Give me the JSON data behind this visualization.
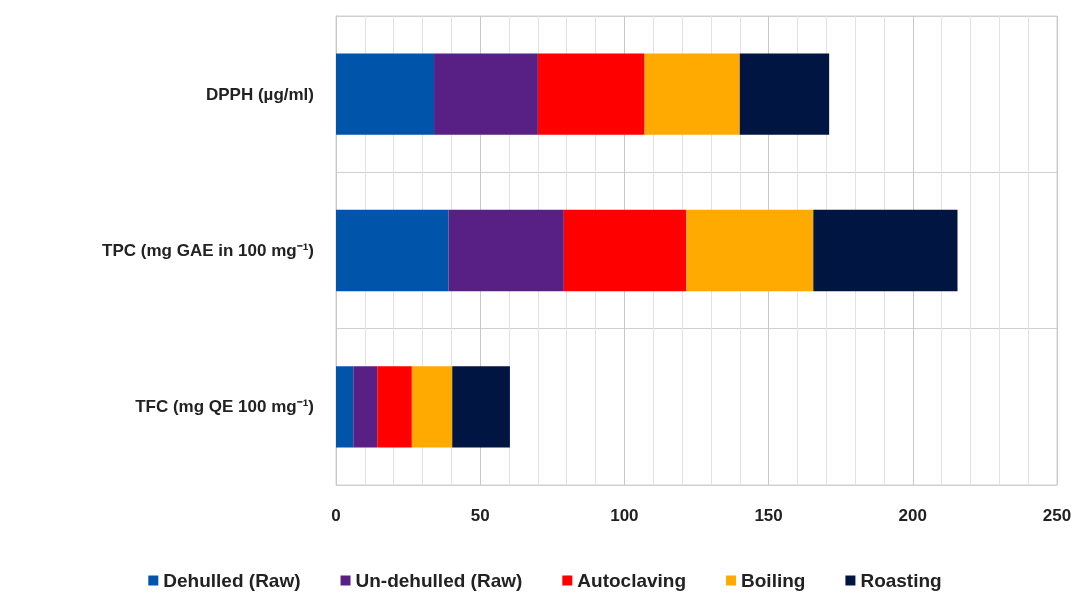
{
  "chart_data": {
    "type": "bar",
    "orientation": "horizontal",
    "stacked": true,
    "categories": [
      "DPPH (µg/ml)",
      "TPC (mg GAE in 100 mg⁻¹)",
      "TFC (mg QE 100 mg⁻¹)"
    ],
    "series": [
      {
        "name": "Dehulled (Raw)",
        "color": "#0055ab",
        "values": [
          34,
          39,
          6
        ]
      },
      {
        "name": "Un-dehulled (Raw)",
        "color": "#582085",
        "values": [
          36,
          40,
          8.3
        ]
      },
      {
        "name": "Autoclaving",
        "color": "#ff0000",
        "values": [
          37,
          42.5,
          12
        ]
      },
      {
        "name": "Boiling",
        "color": "#ffaa00",
        "values": [
          33,
          44,
          14
        ]
      },
      {
        "name": "Roasting",
        "color": "#001542",
        "values": [
          31,
          50,
          20
        ]
      }
    ],
    "xlim": [
      0,
      250
    ],
    "xticks": [
      0,
      50,
      100,
      150,
      200,
      250
    ],
    "grid": true,
    "legend": "bottom"
  }
}
